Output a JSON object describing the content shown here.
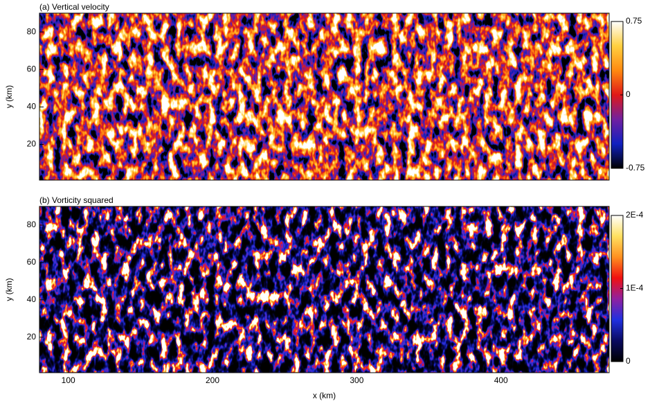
{
  "chart_data": [
    {
      "type": "heatmap",
      "title": "(a) Vertical velocity",
      "ylabel": "y (km)",
      "xlim": [
        80,
        475
      ],
      "ylim": [
        1,
        90
      ],
      "yticks": [
        20,
        40,
        60,
        80
      ],
      "clim": [
        -0.75,
        0.75
      ],
      "cticks": [
        -0.75,
        0,
        0.75
      ],
      "colormap": [
        "#000000",
        "#1020c0",
        "#7020a0",
        "#e01818",
        "#ff8a10",
        "#ffd040",
        "#ffffff"
      ]
    },
    {
      "type": "heatmap",
      "title": "(b) Vorticity squared",
      "ylabel": "y (km)",
      "xlabel": "x (km)",
      "xlim": [
        80,
        475
      ],
      "ylim": [
        1,
        90
      ],
      "xticks": [
        100,
        200,
        300,
        400
      ],
      "yticks": [
        20,
        40,
        60,
        80
      ],
      "clim": [
        0,
        0.0002
      ],
      "cticks": [
        0,
        {
          "value": 0.0001,
          "label": "1E-4"
        },
        {
          "value": 0.0002,
          "label": "2E-4"
        }
      ],
      "colormap": [
        "#000000",
        "#0a0a60",
        "#2030e0",
        "#9020a0",
        "#f01010",
        "#ff9020",
        "#ffe060",
        "#ffffff"
      ]
    }
  ]
}
